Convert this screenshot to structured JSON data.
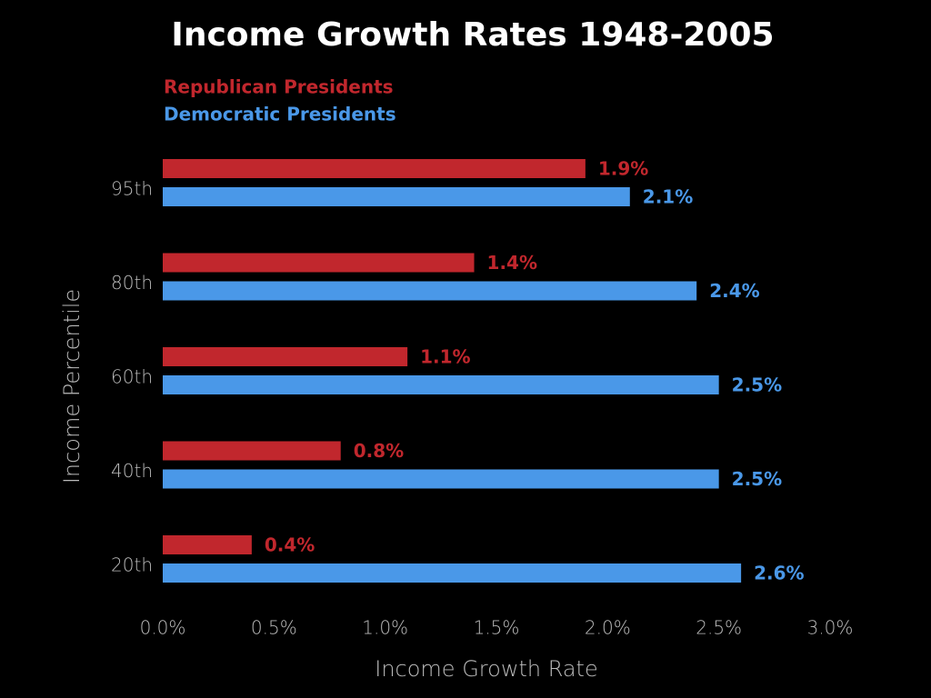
{
  "chart_data": {
    "type": "bar",
    "orientation": "horizontal",
    "title": "Income Growth Rates 1948-2005",
    "x_label": "Income Growth Rate",
    "y_label": "Income Percentile",
    "categories": [
      "95th",
      "80th",
      "60th",
      "40th",
      "20th"
    ],
    "series": [
      {
        "name": "Republican Presidents",
        "color": "#c1272d",
        "values": [
          1.9,
          1.4,
          1.1,
          0.8,
          0.4
        ],
        "value_labels": [
          "1.9%",
          "1.4%",
          "1.1%",
          "0.8%",
          "0.4%"
        ]
      },
      {
        "name": "Democratic Presidents",
        "color": "#4a98e8",
        "values": [
          2.1,
          2.4,
          2.5,
          2.5,
          2.6
        ],
        "value_labels": [
          "2.1%",
          "2.4%",
          "2.5%",
          "2.5%",
          "2.6%"
        ]
      }
    ],
    "xlim": [
      0,
      3
    ],
    "xticks": [
      {
        "value": 0,
        "label": "0.0%"
      },
      {
        "value": 0.5,
        "label": "0.5%"
      },
      {
        "value": 1,
        "label": "1.0%"
      },
      {
        "value": 1.5,
        "label": "1.5%"
      },
      {
        "value": 2,
        "label": "2.0%"
      },
      {
        "value": 2.5,
        "label": "2.5%"
      },
      {
        "value": 3,
        "label": "3.0%"
      }
    ],
    "grid": false,
    "legend": "top-left"
  }
}
